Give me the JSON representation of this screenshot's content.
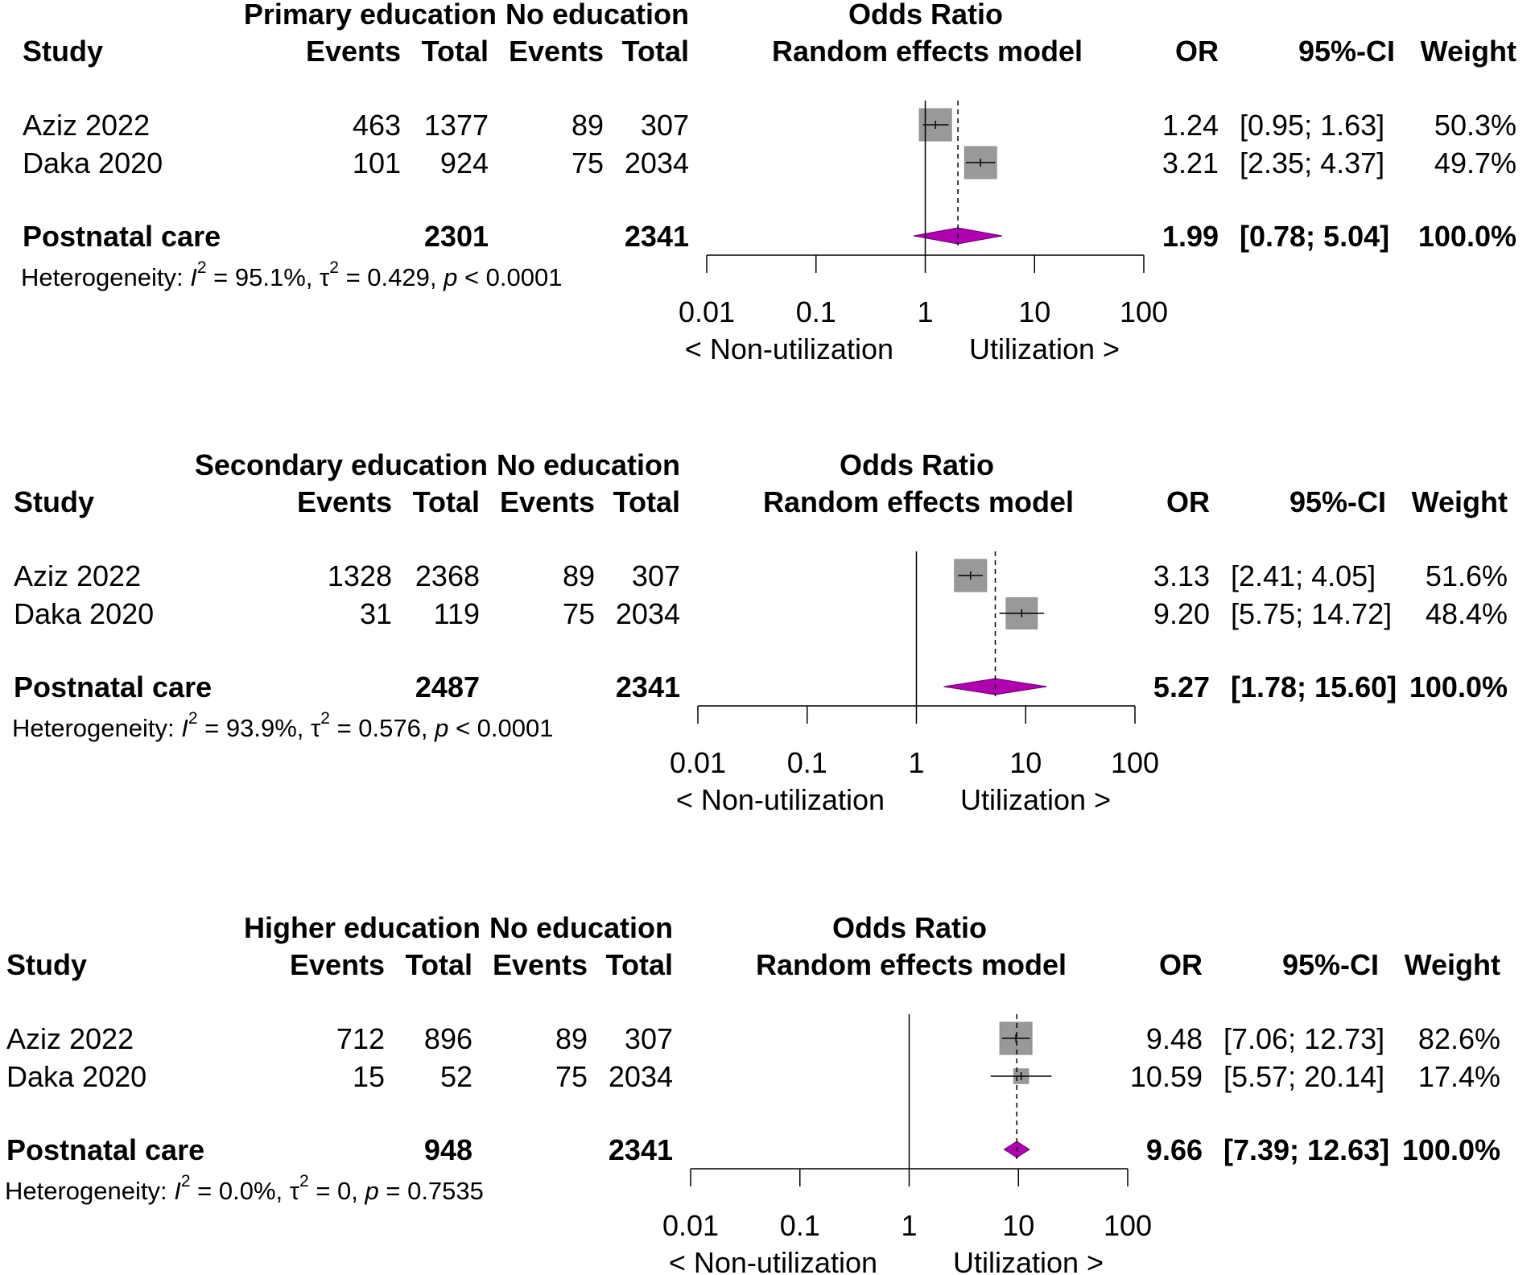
{
  "colors": {
    "box": "#999999",
    "box_stroke": "#8a8a8a",
    "diamond": "#b000b0",
    "diamond_stroke": "#6a006a",
    "line": "#000000"
  },
  "chart_data": [
    {
      "type": "forest",
      "header": {
        "group1": "Primary education",
        "group2": "No education",
        "plot_title": "Odds Ratio",
        "study": "Study",
        "events1": "Events",
        "total1": "Total",
        "events2": "Events",
        "total2": "Total",
        "plot_subtitle": "Random effects model",
        "or": "OR",
        "ci": "95%-CI",
        "weight": "Weight"
      },
      "studies": [
        {
          "name": "Aziz 2022",
          "events1": "463",
          "total1": "1377",
          "events2": "89",
          "total2": "307",
          "or_text": "1.24",
          "ci_text": "[0.95;  1.63]",
          "weight_text": "50.3%",
          "or": 1.24,
          "lower": 0.95,
          "upper": 1.63,
          "weight": 50.3
        },
        {
          "name": "Daka 2020",
          "events1": "101",
          "total1": "924",
          "events2": "75",
          "total2": "2034",
          "or_text": "3.21",
          "ci_text": "[2.35;  4.37]",
          "weight_text": "49.7%",
          "or": 3.21,
          "lower": 2.35,
          "upper": 4.37,
          "weight": 49.7
        }
      ],
      "pooled": {
        "name": "Postnatal care",
        "total1": "2301",
        "total2": "2341",
        "or_text": "1.99",
        "ci_text": "[0.78;  5.04]",
        "weight_text": "100.0%",
        "or": 1.99,
        "lower": 0.78,
        "upper": 5.04
      },
      "heterogeneity": {
        "label": "Heterogeneity: ",
        "i2": "= 95.1%, ",
        "tau2": "= 0.429, ",
        "p": "< 0.0001"
      },
      "x_ticks": [
        {
          "value": 0.01,
          "label": "0.01"
        },
        {
          "value": 0.1,
          "label": "0.1"
        },
        {
          "value": 1,
          "label": "1"
        },
        {
          "value": 10,
          "label": "10"
        },
        {
          "value": 100,
          "label": "100"
        }
      ],
      "xlim": [
        0.01,
        100
      ],
      "x_scale": "log",
      "left_label": "< Non-utilization",
      "right_label": "Utilization >"
    },
    {
      "type": "forest",
      "header": {
        "group1": "Secondary education",
        "group2": "No education",
        "plot_title": "Odds Ratio",
        "study": "Study",
        "events1": "Events",
        "total1": "Total",
        "events2": "Events",
        "total2": "Total",
        "plot_subtitle": "Random effects model",
        "or": "OR",
        "ci": "95%-CI",
        "weight": "Weight"
      },
      "studies": [
        {
          "name": "Aziz 2022",
          "events1": "1328",
          "total1": "2368",
          "events2": "89",
          "total2": "307",
          "or_text": "3.13",
          "ci_text": "[2.41;  4.05]",
          "weight_text": "51.6%",
          "or": 3.13,
          "lower": 2.41,
          "upper": 4.05,
          "weight": 51.6
        },
        {
          "name": "Daka 2020",
          "events1": "31",
          "total1": "119",
          "events2": "75",
          "total2": "2034",
          "or_text": "9.20",
          "ci_text": "[5.75; 14.72]",
          "weight_text": "48.4%",
          "or": 9.2,
          "lower": 5.75,
          "upper": 14.72,
          "weight": 48.4
        }
      ],
      "pooled": {
        "name": "Postnatal care",
        "total1": "2487",
        "total2": "2341",
        "or_text": "5.27",
        "ci_text": "[1.78; 15.60]",
        "weight_text": "100.0%",
        "or": 5.27,
        "lower": 1.78,
        "upper": 15.6
      },
      "heterogeneity": {
        "label": "Heterogeneity: ",
        "i2": "= 93.9%, ",
        "tau2": "= 0.576, ",
        "p": "< 0.0001"
      },
      "x_ticks": [
        {
          "value": 0.01,
          "label": "0.01"
        },
        {
          "value": 0.1,
          "label": "0.1"
        },
        {
          "value": 1,
          "label": "1"
        },
        {
          "value": 10,
          "label": "10"
        },
        {
          "value": 100,
          "label": "100"
        }
      ],
      "xlim": [
        0.01,
        100
      ],
      "x_scale": "log",
      "left_label": "< Non-utilization",
      "right_label": "Utilization >"
    },
    {
      "type": "forest",
      "header": {
        "group1": "Higher education",
        "group2": "No education",
        "plot_title": "Odds Ratio",
        "study": "Study",
        "events1": "Events",
        "total1": "Total",
        "events2": "Events",
        "total2": "Total",
        "plot_subtitle": "Random effects model",
        "or": "OR",
        "ci": "95%-CI",
        "weight": "Weight"
      },
      "studies": [
        {
          "name": "Aziz 2022",
          "events1": "712",
          "total1": "896",
          "events2": "89",
          "total2": "307",
          "or_text": "9.48",
          "ci_text": "[7.06; 12.73]",
          "weight_text": "82.6%",
          "or": 9.48,
          "lower": 7.06,
          "upper": 12.73,
          "weight": 82.6
        },
        {
          "name": "Daka 2020",
          "events1": "15",
          "total1": "52",
          "events2": "75",
          "total2": "2034",
          "or_text": "10.59",
          "ci_text": "[5.57; 20.14]",
          "weight_text": "17.4%",
          "or": 10.59,
          "lower": 5.57,
          "upper": 20.14,
          "weight": 17.4
        }
      ],
      "pooled": {
        "name": "Postnatal care",
        "total1": "948",
        "total2": "2341",
        "or_text": "9.66",
        "ci_text": "[7.39; 12.63]",
        "weight_text": "100.0%",
        "or": 9.66,
        "lower": 7.39,
        "upper": 12.63
      },
      "heterogeneity": {
        "label": "Heterogeneity: ",
        "i2": "= 0.0%, ",
        "tau2": "= 0, ",
        "p": "= 0.7535"
      },
      "x_ticks": [
        {
          "value": 0.01,
          "label": "0.01"
        },
        {
          "value": 0.1,
          "label": "0.1"
        },
        {
          "value": 1,
          "label": "1"
        },
        {
          "value": 10,
          "label": "10"
        },
        {
          "value": 100,
          "label": "100"
        }
      ],
      "xlim": [
        0.01,
        100
      ],
      "x_scale": "log",
      "left_label": "< Non-utilization",
      "right_label": "Utilization >"
    }
  ]
}
